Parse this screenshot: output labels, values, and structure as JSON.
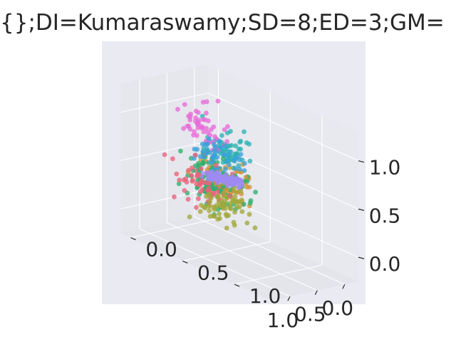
{
  "chart_data": {
    "type": "scatter",
    "projection": "3d",
    "title": "{};DI=Kumaraswamy;SD=8;ED=3;GM=",
    "xlabel": "",
    "ylabel": "",
    "zlabel": "",
    "xlim": [
      -0.25,
      1.35
    ],
    "ylim": [
      -0.1,
      1.35
    ],
    "zlim": [
      -0.25,
      1.3
    ],
    "x_ticks": [
      "0.0",
      "0.5",
      "1.0"
    ],
    "y_ticks": [
      "0.0",
      "0.5",
      "1.0"
    ],
    "z_ticks": [
      "0.0",
      "0.5",
      "1.0"
    ],
    "grid": true,
    "style": "seaborn-darkgrid",
    "series": [
      {
        "color": "#e86ad8",
        "center": [
          0.45,
          0.2,
          0.9
        ],
        "spread": [
          0.28,
          0.18,
          0.22
        ],
        "count": 50,
        "shape": "cloud"
      },
      {
        "color": "#2db3b3",
        "center": [
          0.1,
          0.25,
          0.65
        ],
        "spread": [
          0.2,
          0.2,
          0.25
        ],
        "count": 60,
        "shape": "cloud"
      },
      {
        "color": "#3aa0d8",
        "center": [
          0.55,
          0.45,
          0.7
        ],
        "spread": [
          0.2,
          0.2,
          0.15
        ],
        "count": 50,
        "shape": "cloud"
      },
      {
        "color": "#9d8bf2",
        "start": [
          0.55,
          0.3,
          0.45
        ],
        "end": [
          1.15,
          0.95,
          0.75
        ],
        "spread": 0.04,
        "count": 110,
        "shape": "line"
      },
      {
        "color": "#2fb06e",
        "center": [
          0.4,
          0.3,
          0.35
        ],
        "spread": [
          0.28,
          0.25,
          0.25
        ],
        "count": 120,
        "shape": "cloud"
      },
      {
        "color": "#d4943a",
        "center": [
          0.15,
          0.3,
          0.3
        ],
        "spread": [
          0.28,
          0.2,
          0.2
        ],
        "count": 80,
        "shape": "cloud"
      },
      {
        "color": "#a2a838",
        "center": [
          0.75,
          0.55,
          0.25
        ],
        "spread": [
          0.22,
          0.2,
          0.18
        ],
        "count": 70,
        "shape": "cloud"
      },
      {
        "color": "#e9637a",
        "center": [
          0.7,
          0.35,
          0.4
        ],
        "spread": [
          0.28,
          0.2,
          0.22
        ],
        "count": 60,
        "shape": "cloud"
      }
    ]
  }
}
